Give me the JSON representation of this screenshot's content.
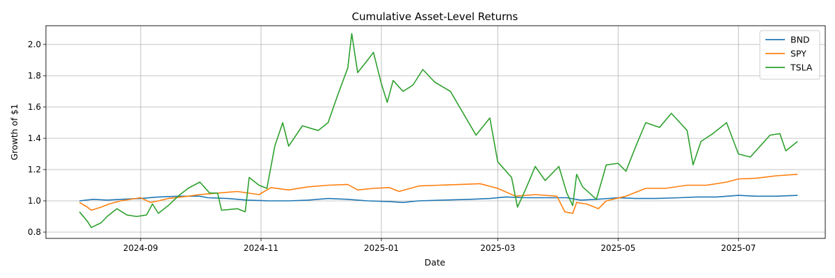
{
  "chart_data": {
    "type": "line",
    "title": "Cumulative Asset-Level Returns",
    "xlabel": "Date",
    "ylabel": "Growth of $1",
    "x_ticks": [
      "2024-09",
      "2024-11",
      "2025-01",
      "2025-03",
      "2025-05",
      "2025-07"
    ],
    "y_ticks": [
      "0.8",
      "1.0",
      "1.2",
      "1.4",
      "1.6",
      "1.8",
      "2.0"
    ],
    "xlim": [
      "2024-07-15",
      "2025-08-14"
    ],
    "ylim": [
      0.76,
      2.12
    ],
    "grid": true,
    "legend_position": "top-right",
    "series": [
      {
        "name": "BND",
        "color": "#1f77b4",
        "points": [
          [
            "2024-08-01",
            1.0
          ],
          [
            "2024-08-08",
            1.01
          ],
          [
            "2024-08-15",
            1.005
          ],
          [
            "2024-08-22",
            1.01
          ],
          [
            "2024-09-01",
            1.015
          ],
          [
            "2024-09-10",
            1.025
          ],
          [
            "2024-09-20",
            1.03
          ],
          [
            "2024-10-01",
            1.03
          ],
          [
            "2024-10-05",
            1.02
          ],
          [
            "2024-10-15",
            1.015
          ],
          [
            "2024-10-25",
            1.005
          ],
          [
            "2024-11-05",
            1.0
          ],
          [
            "2024-11-15",
            1.0
          ],
          [
            "2024-11-25",
            1.005
          ],
          [
            "2024-12-05",
            1.015
          ],
          [
            "2024-12-15",
            1.01
          ],
          [
            "2024-12-25",
            1.0
          ],
          [
            "2025-01-05",
            0.995
          ],
          [
            "2025-01-12",
            0.99
          ],
          [
            "2025-01-20",
            1.0
          ],
          [
            "2025-02-01",
            1.005
          ],
          [
            "2025-02-15",
            1.01
          ],
          [
            "2025-02-25",
            1.015
          ],
          [
            "2025-03-05",
            1.025
          ],
          [
            "2025-03-15",
            1.02
          ],
          [
            "2025-03-25",
            1.02
          ],
          [
            "2025-04-05",
            1.02
          ],
          [
            "2025-04-12",
            1.005
          ],
          [
            "2025-04-20",
            1.01
          ],
          [
            "2025-05-01",
            1.02
          ],
          [
            "2025-05-10",
            1.015
          ],
          [
            "2025-05-20",
            1.015
          ],
          [
            "2025-06-01",
            1.02
          ],
          [
            "2025-06-10",
            1.025
          ],
          [
            "2025-06-20",
            1.025
          ],
          [
            "2025-07-01",
            1.035
          ],
          [
            "2025-07-10",
            1.03
          ],
          [
            "2025-07-20",
            1.03
          ],
          [
            "2025-07-31",
            1.035
          ]
        ]
      },
      {
        "name": "SPY",
        "color": "#ff7f0e",
        "points": [
          [
            "2024-08-01",
            0.99
          ],
          [
            "2024-08-05",
            0.96
          ],
          [
            "2024-08-07",
            0.94
          ],
          [
            "2024-08-12",
            0.96
          ],
          [
            "2024-08-16",
            0.98
          ],
          [
            "2024-08-22",
            1.0
          ],
          [
            "2024-09-01",
            1.02
          ],
          [
            "2024-09-06",
            0.99
          ],
          [
            "2024-09-10",
            1.0
          ],
          [
            "2024-09-15",
            1.015
          ],
          [
            "2024-09-25",
            1.03
          ],
          [
            "2024-10-01",
            1.04
          ],
          [
            "2024-10-10",
            1.05
          ],
          [
            "2024-10-20",
            1.06
          ],
          [
            "2024-10-31",
            1.04
          ],
          [
            "2024-11-06",
            1.085
          ],
          [
            "2024-11-15",
            1.07
          ],
          [
            "2024-11-25",
            1.09
          ],
          [
            "2024-12-05",
            1.1
          ],
          [
            "2024-12-15",
            1.105
          ],
          [
            "2024-12-20",
            1.07
          ],
          [
            "2024-12-28",
            1.08
          ],
          [
            "2025-01-05",
            1.085
          ],
          [
            "2025-01-10",
            1.06
          ],
          [
            "2025-01-20",
            1.095
          ],
          [
            "2025-01-30",
            1.1
          ],
          [
            "2025-02-10",
            1.105
          ],
          [
            "2025-02-20",
            1.11
          ],
          [
            "2025-03-01",
            1.08
          ],
          [
            "2025-03-10",
            1.03
          ],
          [
            "2025-03-20",
            1.04
          ],
          [
            "2025-03-31",
            1.03
          ],
          [
            "2025-04-04",
            0.93
          ],
          [
            "2025-04-08",
            0.92
          ],
          [
            "2025-04-10",
            0.99
          ],
          [
            "2025-04-15",
            0.98
          ],
          [
            "2025-04-21",
            0.95
          ],
          [
            "2025-04-25",
            1.0
          ],
          [
            "2025-05-05",
            1.03
          ],
          [
            "2025-05-15",
            1.08
          ],
          [
            "2025-05-25",
            1.08
          ],
          [
            "2025-06-05",
            1.1
          ],
          [
            "2025-06-15",
            1.1
          ],
          [
            "2025-06-25",
            1.12
          ],
          [
            "2025-07-01",
            1.14
          ],
          [
            "2025-07-10",
            1.145
          ],
          [
            "2025-07-20",
            1.16
          ],
          [
            "2025-07-31",
            1.17
          ]
        ]
      },
      {
        "name": "TSLA",
        "color": "#2ca02c",
        "points": [
          [
            "2024-08-01",
            0.93
          ],
          [
            "2024-08-05",
            0.87
          ],
          [
            "2024-08-07",
            0.83
          ],
          [
            "2024-08-12",
            0.86
          ],
          [
            "2024-08-15",
            0.9
          ],
          [
            "2024-08-20",
            0.95
          ],
          [
            "2024-08-25",
            0.91
          ],
          [
            "2024-08-30",
            0.9
          ],
          [
            "2024-09-04",
            0.91
          ],
          [
            "2024-09-07",
            0.98
          ],
          [
            "2024-09-10",
            0.92
          ],
          [
            "2024-09-15",
            0.97
          ],
          [
            "2024-09-20",
            1.03
          ],
          [
            "2024-09-25",
            1.08
          ],
          [
            "2024-10-01",
            1.12
          ],
          [
            "2024-10-06",
            1.05
          ],
          [
            "2024-10-10",
            1.05
          ],
          [
            "2024-10-12",
            0.94
          ],
          [
            "2024-10-20",
            0.95
          ],
          [
            "2024-10-24",
            0.93
          ],
          [
            "2024-10-26",
            1.15
          ],
          [
            "2024-10-31",
            1.1
          ],
          [
            "2024-11-04",
            1.08
          ],
          [
            "2024-11-08",
            1.35
          ],
          [
            "2024-11-12",
            1.5
          ],
          [
            "2024-11-15",
            1.35
          ],
          [
            "2024-11-22",
            1.48
          ],
          [
            "2024-11-30",
            1.45
          ],
          [
            "2024-12-05",
            1.5
          ],
          [
            "2024-12-10",
            1.68
          ],
          [
            "2024-12-15",
            1.85
          ],
          [
            "2024-12-17",
            2.07
          ],
          [
            "2024-12-20",
            1.82
          ],
          [
            "2024-12-25",
            1.9
          ],
          [
            "2024-12-28",
            1.95
          ],
          [
            "2025-01-01",
            1.75
          ],
          [
            "2025-01-04",
            1.63
          ],
          [
            "2025-01-07",
            1.77
          ],
          [
            "2025-01-12",
            1.7
          ],
          [
            "2025-01-17",
            1.74
          ],
          [
            "2025-01-22",
            1.84
          ],
          [
            "2025-01-28",
            1.76
          ],
          [
            "2025-02-05",
            1.7
          ],
          [
            "2025-02-12",
            1.55
          ],
          [
            "2025-02-18",
            1.42
          ],
          [
            "2025-02-25",
            1.53
          ],
          [
            "2025-03-01",
            1.25
          ],
          [
            "2025-03-08",
            1.15
          ],
          [
            "2025-03-11",
            0.96
          ],
          [
            "2025-03-15",
            1.07
          ],
          [
            "2025-03-20",
            1.22
          ],
          [
            "2025-03-25",
            1.13
          ],
          [
            "2025-04-01",
            1.22
          ],
          [
            "2025-04-05",
            1.05
          ],
          [
            "2025-04-08",
            0.97
          ],
          [
            "2025-04-10",
            1.17
          ],
          [
            "2025-04-13",
            1.09
          ],
          [
            "2025-04-20",
            1.01
          ],
          [
            "2025-04-25",
            1.23
          ],
          [
            "2025-05-01",
            1.24
          ],
          [
            "2025-05-05",
            1.19
          ],
          [
            "2025-05-10",
            1.35
          ],
          [
            "2025-05-15",
            1.5
          ],
          [
            "2025-05-22",
            1.47
          ],
          [
            "2025-05-28",
            1.56
          ],
          [
            "2025-06-05",
            1.45
          ],
          [
            "2025-06-08",
            1.23
          ],
          [
            "2025-06-12",
            1.38
          ],
          [
            "2025-06-18",
            1.43
          ],
          [
            "2025-06-25",
            1.5
          ],
          [
            "2025-07-01",
            1.3
          ],
          [
            "2025-07-07",
            1.28
          ],
          [
            "2025-07-12",
            1.35
          ],
          [
            "2025-07-17",
            1.42
          ],
          [
            "2025-07-22",
            1.43
          ],
          [
            "2025-07-25",
            1.32
          ],
          [
            "2025-07-31",
            1.38
          ]
        ]
      }
    ]
  }
}
